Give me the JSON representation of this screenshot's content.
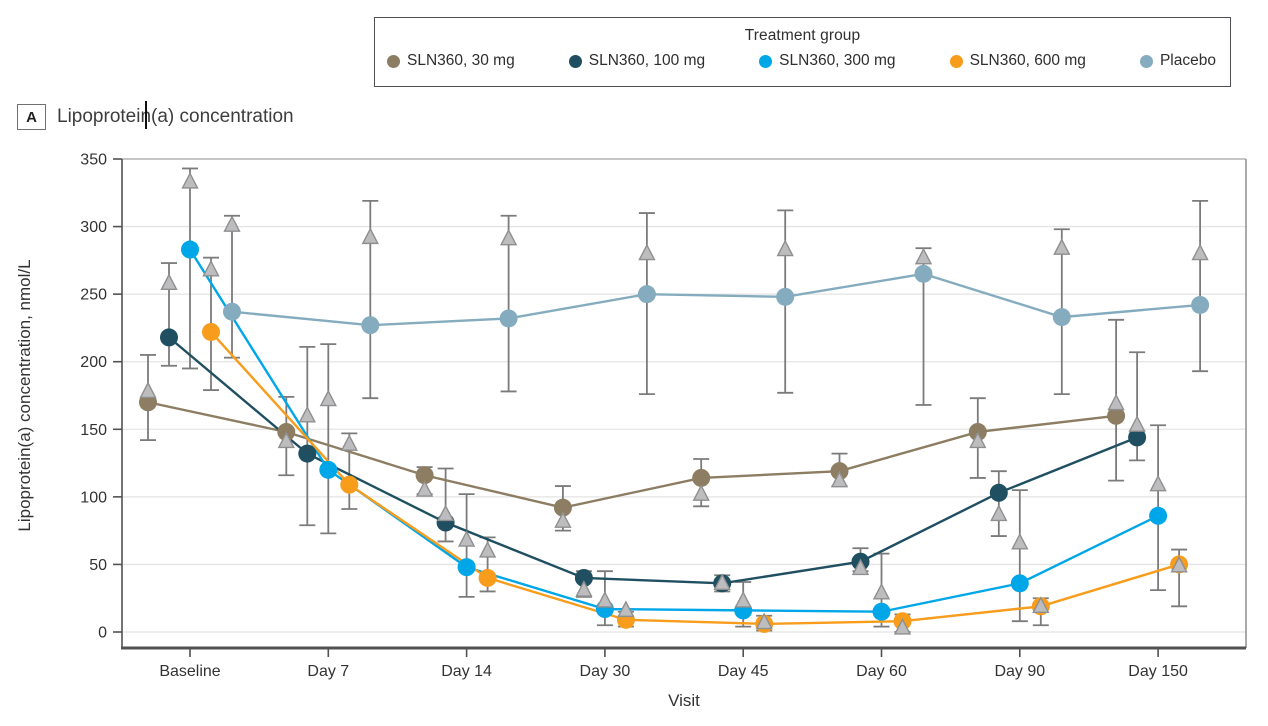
{
  "panel": {
    "letter": "A",
    "title": "Lipoprotein(a) concentration"
  },
  "legend": {
    "title": "Treatment group",
    "items": [
      {
        "label": "SLN360, 30 mg",
        "color": "#8C7D63"
      },
      {
        "label": "SLN360, 100 mg",
        "color": "#1F4F60"
      },
      {
        "label": "SLN360, 300 mg",
        "color": "#00A7E8"
      },
      {
        "label": "SLN360, 600 mg",
        "color": "#F89C1C"
      },
      {
        "label": "Placebo",
        "color": "#84ACBE"
      }
    ]
  },
  "chart_data": {
    "type": "line",
    "title": "Lipoprotein(a) concentration",
    "xlabel": "Visit",
    "ylabel": "Lipoprotein(a) concentration, nmol/L",
    "x_categories": [
      "Baseline",
      "Day 7",
      "Day 14",
      "Day 30",
      "Day 45",
      "Day 60",
      "Day 90",
      "Day 150"
    ],
    "ylim": [
      0,
      350
    ],
    "yticks": [
      0,
      50,
      100,
      150,
      200,
      250,
      300,
      350
    ],
    "grid": true,
    "legend_position": "top",
    "marker_styles": "colored circles connected by lines with gray error bars; unconnected gray triangles mark secondary values",
    "series": [
      {
        "name": "SLN360, 30 mg",
        "color": "#8C7D63",
        "circle_means": [
          170,
          148,
          116,
          92,
          114,
          119,
          148,
          160
        ],
        "triangle_values": [
          178,
          141,
          105,
          82,
          102,
          112,
          141,
          169
        ],
        "err_lo": [
          142,
          116,
          102,
          75,
          93,
          108,
          114,
          112
        ],
        "err_hi": [
          205,
          174,
          122,
          108,
          128,
          132,
          173,
          231
        ]
      },
      {
        "name": "SLN360, 100 mg",
        "color": "#1F4F60",
        "circle_means": [
          218,
          132,
          81,
          40,
          36,
          52,
          103,
          144
        ],
        "triangle_values": [
          258,
          160,
          87,
          31,
          36,
          47,
          87,
          153
        ],
        "err_lo": [
          197,
          79,
          67,
          26,
          30,
          45,
          71,
          127
        ],
        "err_hi": [
          273,
          211,
          121,
          45,
          42,
          62,
          119,
          207
        ]
      },
      {
        "name": "SLN360, 300 mg",
        "color": "#00A7E8",
        "circle_means": [
          283,
          120,
          48,
          17,
          16,
          15,
          36,
          86
        ],
        "triangle_values": [
          333,
          172,
          68,
          23,
          23,
          29,
          66,
          109
        ],
        "err_lo": [
          195,
          73,
          26,
          5,
          4,
          4,
          8,
          31
        ],
        "err_hi": [
          343,
          213,
          102,
          45,
          37,
          58,
          105,
          153
        ]
      },
      {
        "name": "SLN360, 600 mg",
        "color": "#F89C1C",
        "circle_means": [
          222,
          109,
          40,
          9,
          6,
          8,
          19,
          50
        ],
        "triangle_values": [
          268,
          139,
          60,
          16,
          7,
          3,
          19,
          49
        ],
        "err_lo": [
          179,
          91,
          30,
          4,
          1,
          0,
          5,
          19
        ],
        "err_hi": [
          277,
          147,
          70,
          15,
          12,
          13,
          25,
          61
        ]
      },
      {
        "name": "Placebo",
        "color": "#84ACBE",
        "circle_means": [
          237,
          227,
          232,
          250,
          248,
          265,
          233,
          242
        ],
        "triangle_values": [
          301,
          292,
          291,
          280,
          283,
          277,
          284,
          280
        ],
        "err_lo": [
          203,
          173,
          178,
          176,
          177,
          168,
          176,
          193
        ],
        "err_hi": [
          308,
          319,
          308,
          310,
          312,
          284,
          298,
          319
        ]
      }
    ]
  },
  "colors": {
    "error_bar": "#7b7b7b",
    "triangle_fill": "#bdbdbf",
    "triangle_stroke": "#8f8f8f",
    "grid": "#e4e4e4",
    "axis_dark": "#505254",
    "box_light": "#b3b3b3",
    "box_right": "#8f8f8f",
    "text": "#333333"
  }
}
